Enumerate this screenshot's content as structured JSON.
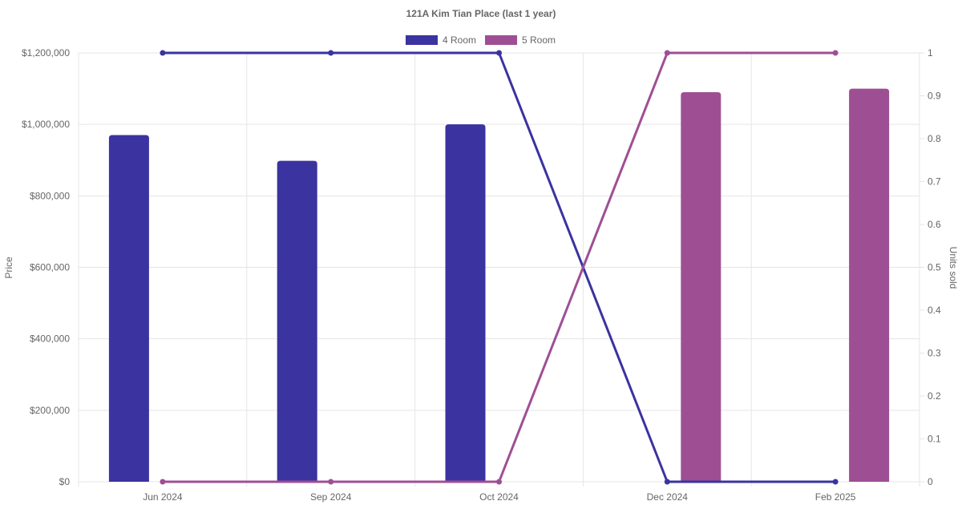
{
  "chart_data": {
    "type": "bar",
    "title": "121A Kim Tian Place (last 1 year)",
    "categories": [
      "Jun 2024",
      "Sep 2024",
      "Oct 2024",
      "Dec 2024",
      "Feb 2025"
    ],
    "ylabel": "Price",
    "y2label": "Units sold",
    "ylim": [
      0,
      1200000
    ],
    "y2lim": [
      0,
      1
    ],
    "y_ticks": [
      "$0",
      "$200,000",
      "$400,000",
      "$600,000",
      "$800,000",
      "$1,000,000",
      "$1,200,000"
    ],
    "y2_ticks": [
      "0",
      "0.1",
      "0.2",
      "0.3",
      "0.4",
      "0.5",
      "0.6",
      "0.7",
      "0.8",
      "0.9",
      "1"
    ],
    "grid": true,
    "legend_position": "top",
    "series": [
      {
        "name": "4 Room",
        "color": "#3a33a0",
        "price": [
          970000,
          898000,
          1000000,
          null,
          null
        ],
        "units_sold": [
          1,
          1,
          1,
          0,
          0
        ]
      },
      {
        "name": "5 Room",
        "color": "#9e4f94",
        "price": [
          null,
          null,
          null,
          1090000,
          1100000
        ],
        "units_sold": [
          0,
          0,
          0,
          1,
          1
        ]
      }
    ]
  }
}
